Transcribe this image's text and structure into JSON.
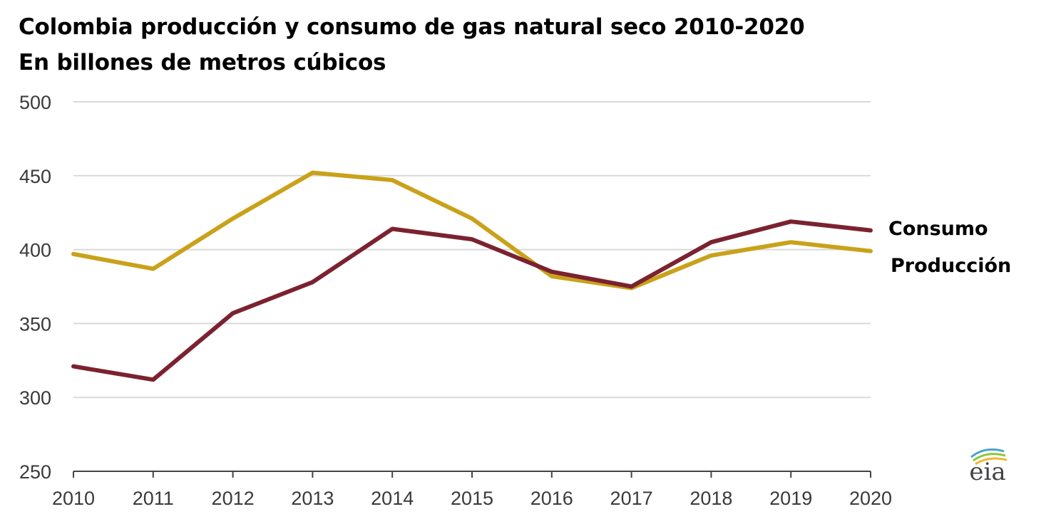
{
  "chart_data": {
    "type": "line",
    "title": "Colombia producción y consumo de gas natural seco 2010-2020",
    "subtitle": "En billones de metros cúbicos",
    "xlabel": "",
    "ylabel": "",
    "x": [
      2010,
      2011,
      2012,
      2013,
      2014,
      2015,
      2016,
      2017,
      2018,
      2019,
      2020
    ],
    "ylim": [
      250,
      500
    ],
    "yticks": [
      250,
      300,
      350,
      400,
      450,
      500
    ],
    "grid": true,
    "legend": "inline-right",
    "series": [
      {
        "name": "Consumo",
        "color": "#7b2230",
        "values": [
          321,
          312,
          357,
          378,
          414,
          407,
          385,
          375,
          405,
          419,
          413
        ]
      },
      {
        "name": "Producción",
        "color": "#c9a21a",
        "values": [
          397,
          387,
          421,
          452,
          447,
          421,
          382,
          374,
          396,
          405,
          399
        ]
      }
    ]
  },
  "logo": {
    "text": "eia",
    "icon": "eia-logo-icon"
  }
}
